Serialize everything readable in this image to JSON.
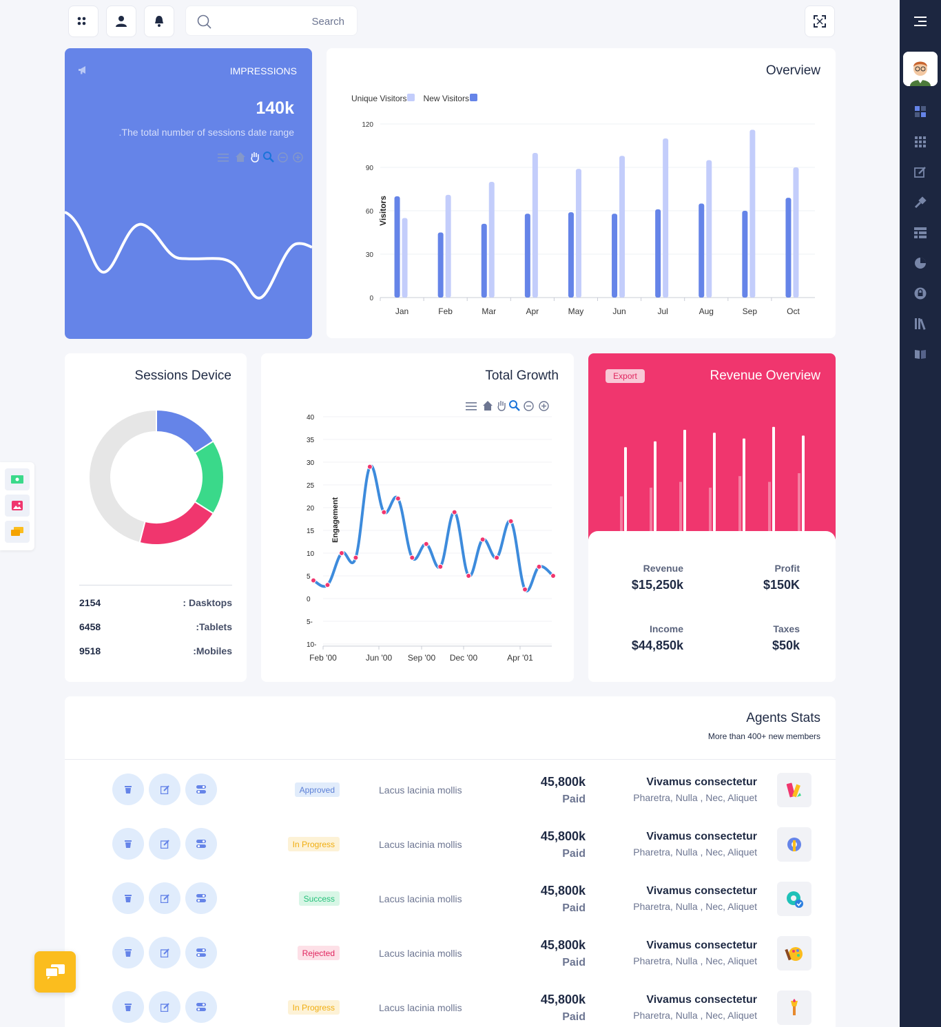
{
  "topbar": {
    "search_placeholder": "Search"
  },
  "impressions": {
    "title": "IMPRESSIONS",
    "value": "140k",
    "description": ".The total number of sessions date range"
  },
  "overview": {
    "title": "Overview",
    "legend": [
      {
        "name": "Unique Visitors",
        "color": "#c3cdfb"
      },
      {
        "name": "New Visitors",
        "color": "#6584e8"
      }
    ]
  },
  "sessions": {
    "title": "Sessions Device",
    "rows": [
      {
        "value": "2154",
        "label": ": Dasktops"
      },
      {
        "value": "6458",
        "label": ":Tablets"
      },
      {
        "value": "9518",
        "label": ":Mobiles"
      }
    ]
  },
  "growth": {
    "title": "Total Growth"
  },
  "revenue": {
    "title": "Revenue Overview",
    "export_label": "Export",
    "stats": [
      {
        "key": "Revenue",
        "value": "$15,250k"
      },
      {
        "key": "Profit",
        "value": "$150K"
      },
      {
        "key": "Income",
        "value": "$44,850k"
      },
      {
        "key": "Taxes",
        "value": "$50k"
      }
    ]
  },
  "agents": {
    "title": "Agents Stats",
    "subtitle": "More than 400+ new members",
    "rows": [
      {
        "status": "Approved",
        "status_bg": "#e1ecfb",
        "status_color": "#5b7fd6",
        "text": "Lacus lacinia mollis",
        "amount": "45,800k",
        "paid": "Paid",
        "name": "Vivamus consectetur",
        "tags": "Pharetra, Nulla , Nec, Aliquet",
        "icon": "pencil-ruler-icon"
      },
      {
        "status": "In Progress",
        "status_bg": "#fdf2d6",
        "status_color": "#f0ad10",
        "text": "Lacus lacinia mollis",
        "amount": "45,800k",
        "paid": "Paid",
        "name": "Vivamus consectetur",
        "tags": "Pharetra, Nulla , Nec, Aliquet",
        "icon": "gear-wrench-icon"
      },
      {
        "status": "Success",
        "status_bg": "#d8f6e6",
        "status_color": "#25c07a",
        "text": "Lacus lacinia mollis",
        "amount": "45,800k",
        "paid": "Paid",
        "name": "Vivamus consectetur",
        "tags": "Pharetra, Nulla , Nec, Aliquet",
        "icon": "gear-check-icon"
      },
      {
        "status": "Rejected",
        "status_bg": "#fde0e7",
        "status_color": "#e0245e",
        "text": "Lacus lacinia mollis",
        "amount": "45,800k",
        "paid": "Paid",
        "name": "Vivamus consectetur",
        "tags": "Pharetra, Nulla , Nec, Aliquet",
        "icon": "palette-icon"
      },
      {
        "status": "In Progress",
        "status_bg": "#fdf2d6",
        "status_color": "#f0ad10",
        "text": "Lacus lacinia mollis",
        "amount": "45,800k",
        "paid": "Paid",
        "name": "Vivamus consectetur",
        "tags": "Pharetra, Nulla , Nec, Aliquet",
        "icon": "torch-icon"
      }
    ]
  },
  "chart_data": [
    {
      "type": "bar",
      "title": "Overview",
      "ylabel": "Visitors",
      "categories": [
        "Jan",
        "Feb",
        "Mar",
        "Apr",
        "May",
        "Jun",
        "Jul",
        "Aug",
        "Sep",
        "Oct"
      ],
      "ylim": [
        0,
        120
      ],
      "yticks": [
        0,
        30,
        60,
        90,
        120
      ],
      "series": [
        {
          "name": "New Visitors",
          "color": "#6584e8",
          "values": [
            70,
            45,
            51,
            58,
            59,
            58,
            61,
            65,
            60,
            69
          ]
        },
        {
          "name": "Unique Visitors",
          "color": "#c3cdfb",
          "values": [
            55,
            71,
            80,
            100,
            89,
            98,
            110,
            95,
            116,
            90
          ]
        }
      ]
    },
    {
      "type": "line",
      "title": "Total Growth",
      "ylabel": "Engagement",
      "ylim": [
        -10,
        40
      ],
      "yticks": [
        40,
        35,
        30,
        25,
        20,
        15,
        10,
        5,
        0,
        -5,
        -10
      ],
      "ytick_labels": [
        "40",
        "35",
        "30",
        "25",
        "20",
        "15",
        "10",
        "5",
        "0",
        "5-",
        "10-"
      ],
      "xticks": [
        "Feb '00",
        "Jun '00",
        "Sep '00",
        "Dec '00",
        "Apr '01"
      ],
      "values": [
        4,
        3,
        10,
        9,
        29,
        19,
        22,
        9,
        12,
        7,
        19,
        5,
        13,
        9,
        17,
        2,
        7,
        5
      ]
    },
    {
      "type": "pie",
      "title": "Sessions Device",
      "slices": [
        {
          "value": 16,
          "color": "#6584e8"
        },
        {
          "value": 18,
          "color": "#3ad98a"
        },
        {
          "value": 20,
          "color": "#f0366e"
        },
        {
          "value": 46,
          "color": "#e6e6e6"
        }
      ]
    },
    {
      "type": "bar",
      "title": "Revenue Overview",
      "series": [
        {
          "name": "",
          "values": [
            29,
            31,
            35,
            34,
            32,
            36,
            33
          ]
        },
        {
          "name": "",
          "values": [
            12,
            15,
            17,
            15,
            19,
            17,
            20
          ]
        }
      ]
    },
    {
      "type": "line",
      "title": "IMPRESSIONS",
      "values": [
        48,
        20,
        65,
        40,
        40,
        5,
        55
      ]
    }
  ]
}
